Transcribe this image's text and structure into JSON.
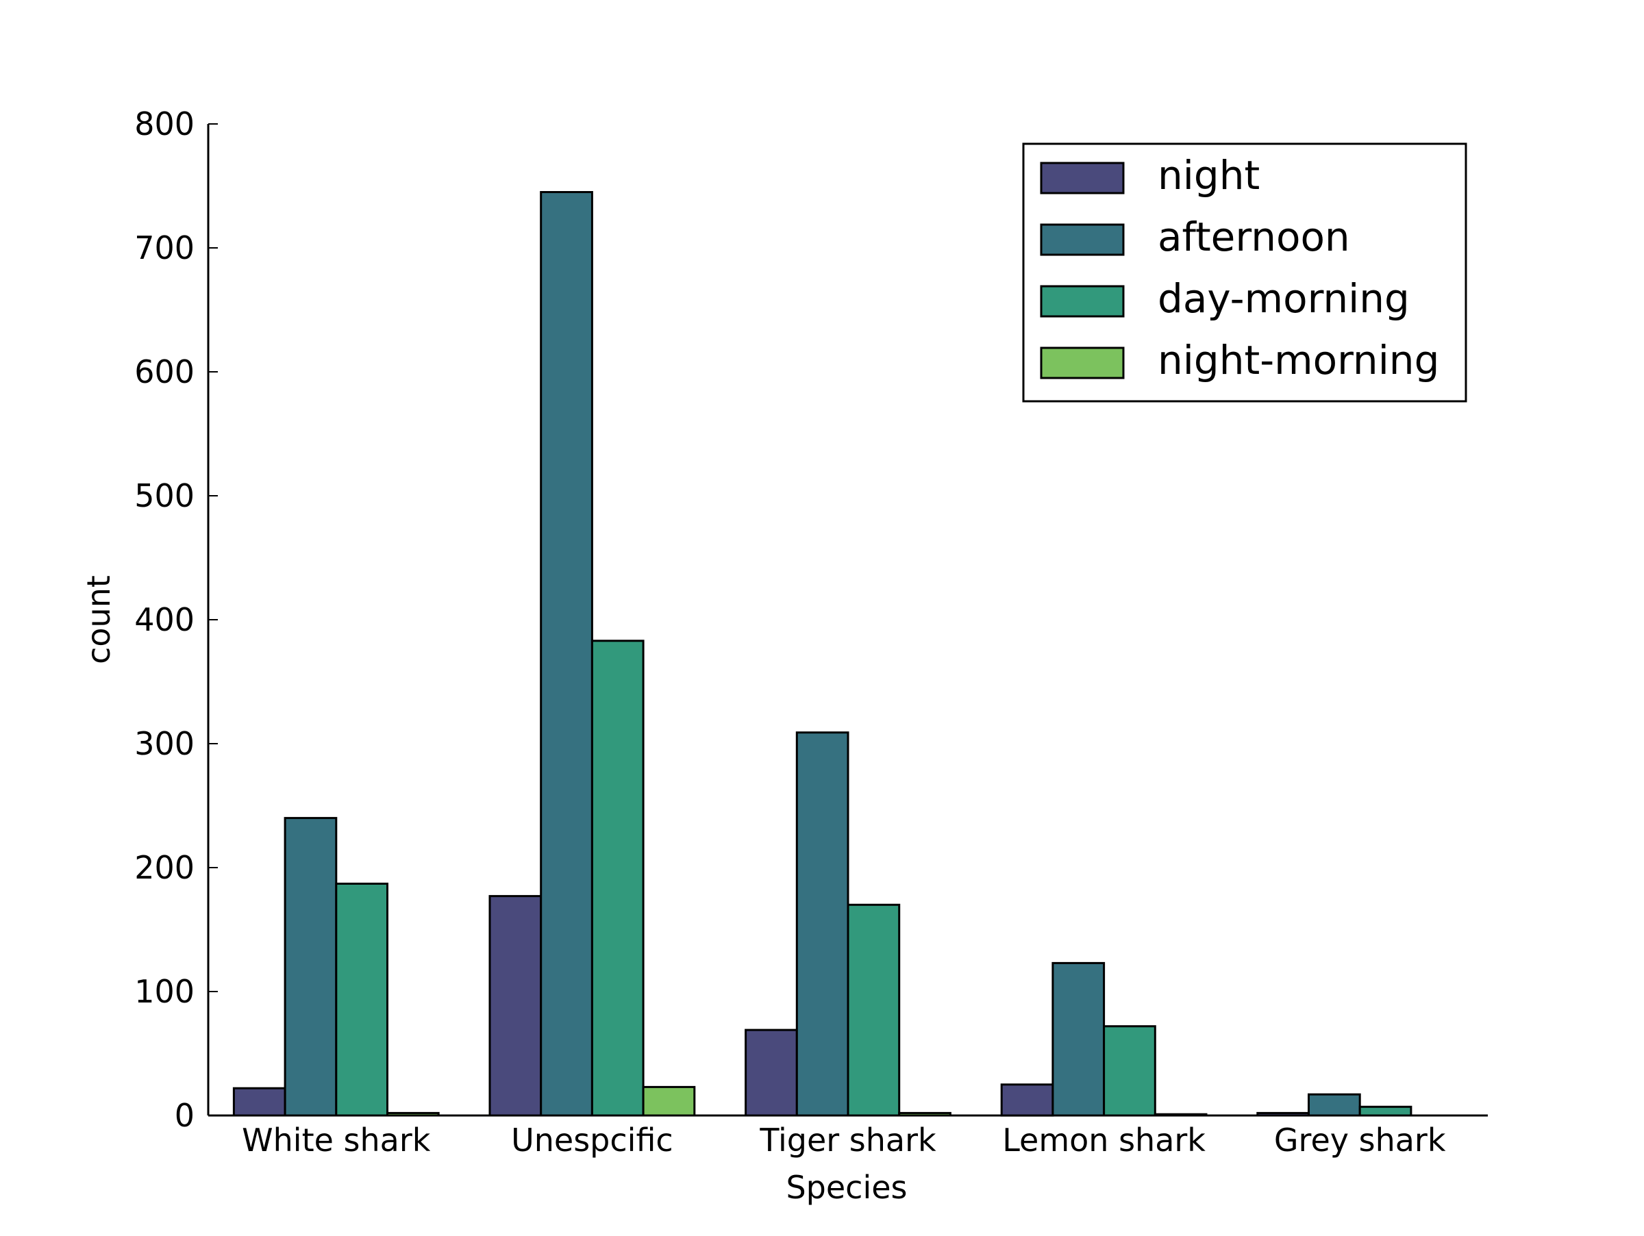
{
  "chart_data": {
    "type": "bar",
    "title": "",
    "xlabel": "Species",
    "ylabel": "count",
    "ylim": [
      0,
      800
    ],
    "yticks": [
      0,
      100,
      200,
      300,
      400,
      500,
      600,
      700,
      800
    ],
    "categories": [
      "White shark",
      "Unespcific",
      "Tiger shark",
      "Lemon shark",
      "Grey shark"
    ],
    "series": [
      {
        "name": "night",
        "color": "#4a4a7c",
        "values": [
          22,
          177,
          69,
          25,
          2
        ]
      },
      {
        "name": "afternoon",
        "color": "#367180",
        "values": [
          240,
          745,
          309,
          123,
          17
        ]
      },
      {
        "name": "day-morning",
        "color": "#32997c",
        "values": [
          187,
          383,
          170,
          72,
          7
        ]
      },
      {
        "name": "night-morning",
        "color": "#7cc25e",
        "values": [
          2,
          23,
          2,
          1,
          0
        ]
      }
    ],
    "grid": false,
    "legend_position": "top-right"
  }
}
